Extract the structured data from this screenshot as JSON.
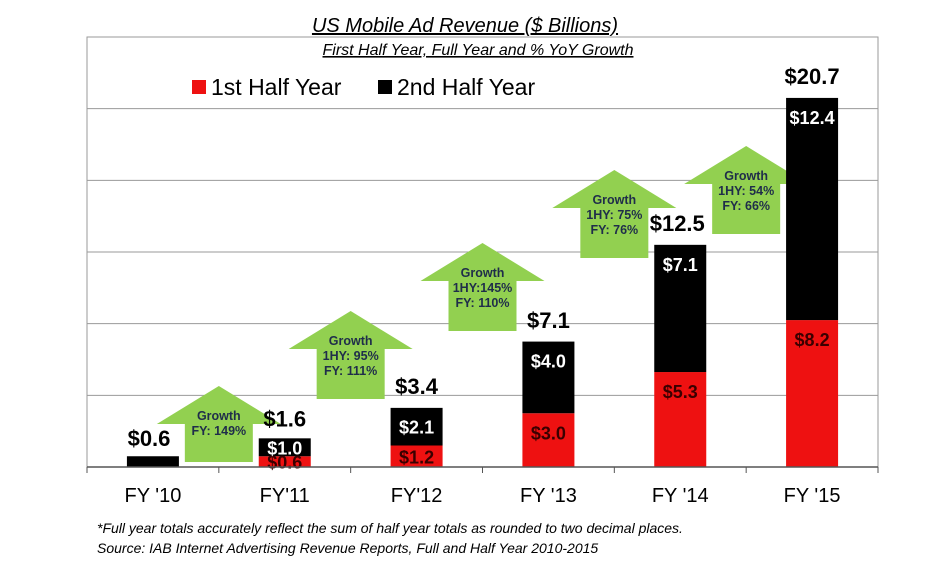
{
  "chart_data": {
    "type": "bar",
    "stacked": true,
    "title": "US Mobile Ad Revenue ($ Billions)",
    "subtitle": "First Half Year, Full  Year and % YoY Growth",
    "categories": [
      "FY '10",
      "FY'11",
      "FY'12",
      "FY '13",
      "FY '14",
      "FY '15"
    ],
    "series": [
      {
        "name": "1st Half Year",
        "color": "#ee1111",
        "values": [
          0,
          0.6,
          1.2,
          3.0,
          5.3,
          8.2
        ],
        "labels": [
          "",
          "$0.6",
          "$1.2",
          "$3.0",
          "$5.3",
          "$8.2"
        ]
      },
      {
        "name": "2nd Half Year",
        "color": "#000000",
        "values": [
          0.6,
          1.0,
          2.1,
          4.0,
          7.1,
          12.4
        ],
        "labels": [
          "",
          "$1.0",
          "$2.1",
          "$4.0",
          "$7.1",
          "$12.4"
        ]
      }
    ],
    "totals": [
      0.6,
      1.6,
      3.4,
      7.1,
      12.5,
      20.7
    ],
    "total_labels": [
      "$0.6",
      "$1.6",
      "$3.4",
      "$7.1",
      "$12.5",
      "$20.7"
    ],
    "ylim": [
      0,
      24
    ],
    "grid": true,
    "legend": "top-left",
    "growth_arrows": [
      {
        "between": [
          "FY '10",
          "FY'11"
        ],
        "lines": [
          "Growth",
          "FY: 149%"
        ],
        "fill": "#92d050"
      },
      {
        "between": [
          "FY'11",
          "FY'12"
        ],
        "lines": [
          "Growth",
          "1HY: 95%",
          "FY: 111%"
        ],
        "fill": "#92d050"
      },
      {
        "between": [
          "FY'12",
          "FY '13"
        ],
        "lines": [
          "Growth",
          "1HY:145%",
          "FY: 110%"
        ],
        "fill": "#92d050"
      },
      {
        "between": [
          "FY '13",
          "FY '14"
        ],
        "lines": [
          "Growth",
          "1HY: 75%",
          "FY: 76%"
        ],
        "fill": "#92d050"
      },
      {
        "between": [
          "FY '14",
          "FY '15"
        ],
        "lines": [
          "Growth",
          "1HY: 54%",
          "FY: 66%"
        ],
        "fill": "#92d050"
      }
    ]
  },
  "footnotes": {
    "note": "*Full year totals accurately reflect the sum of half year totals as rounded to two decimal places.",
    "source": "Source:   IAB Internet Advertising Revenue Reports, Full and Half Year 2010-2015"
  }
}
